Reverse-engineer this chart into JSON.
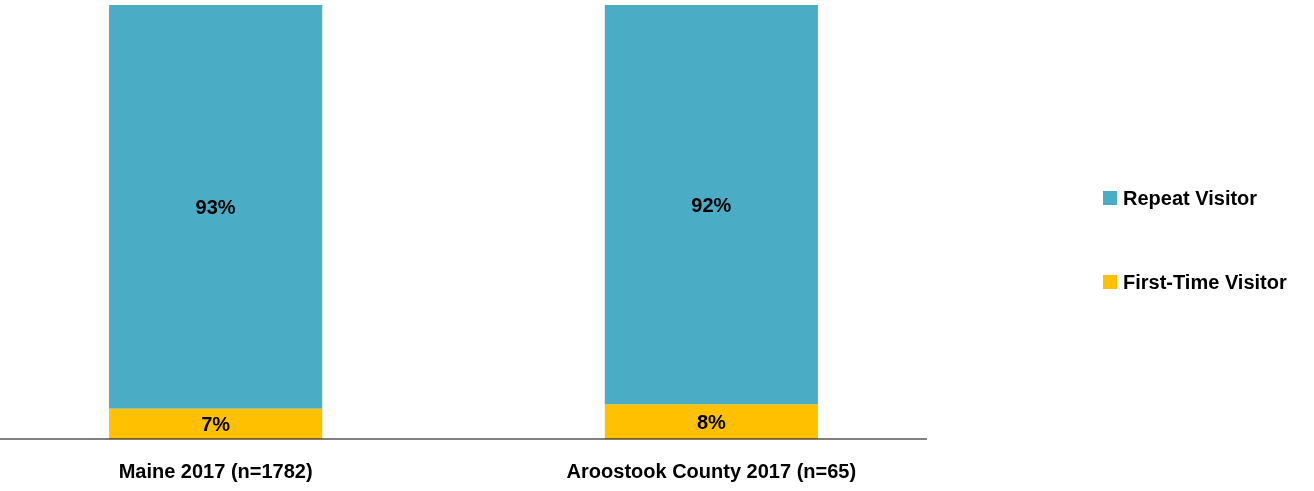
{
  "chart_data": {
    "type": "bar",
    "stacked": true,
    "categories": [
      "Maine 2017 (n=1782)",
      "Aroostook County 2017 (n=65)"
    ],
    "series": [
      {
        "name": "First-Time Visitor",
        "color": "#ffc000",
        "values": [
          7,
          8
        ],
        "value_labels": [
          "7%",
          "8%"
        ]
      },
      {
        "name": "Repeat Visitor",
        "color": "#4bacc6",
        "values": [
          93,
          92
        ],
        "value_labels": [
          "93%",
          "92%"
        ]
      }
    ],
    "legend": "right"
  }
}
